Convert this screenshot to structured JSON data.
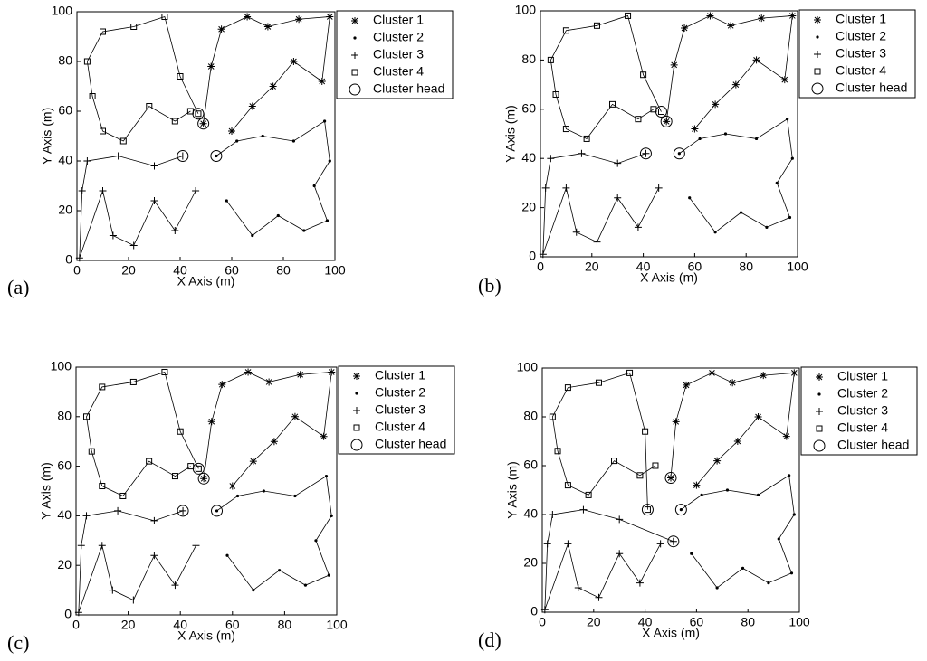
{
  "chart_data": [
    {
      "type": "line",
      "panel_label": "(a)",
      "xlabel": "X Axis (m)",
      "ylabel": "Y Axis (m)",
      "xlim": [
        0,
        100
      ],
      "ylim": [
        0,
        100
      ],
      "xticks": [
        0,
        20,
        40,
        60,
        80,
        100
      ],
      "yticks": [
        0,
        20,
        40,
        60,
        80,
        100
      ],
      "legend": "outside-right",
      "series": [
        {
          "name": "Cluster 1",
          "marker": "asterisk",
          "color": "#000000",
          "line": true,
          "x": [
            49,
            52,
            56,
            66,
            74,
            86,
            98,
            95,
            84,
            76,
            68,
            60
          ],
          "y": [
            55,
            78,
            93,
            98,
            94,
            97,
            98,
            72,
            80,
            70,
            62,
            52
          ]
        },
        {
          "name": "Cluster 2",
          "marker": "dot",
          "color": "#000000",
          "line": true,
          "x": [
            54,
            62,
            72,
            84,
            96,
            98,
            92,
            97,
            88,
            78,
            68,
            58
          ],
          "y": [
            42,
            48,
            50,
            48,
            56,
            40,
            30,
            16,
            12,
            18,
            10,
            24
          ]
        },
        {
          "name": "Cluster 3",
          "marker": "plus",
          "color": "#000000",
          "line": true,
          "x": [
            41,
            30,
            16,
            4,
            2,
            1,
            10,
            14,
            22,
            30,
            38,
            46
          ],
          "y": [
            42,
            38,
            42,
            40,
            28,
            1,
            28,
            10,
            6,
            24,
            12,
            28
          ]
        },
        {
          "name": "Cluster 4",
          "marker": "square",
          "color": "#000000",
          "line": true,
          "x": [
            47,
            40,
            34,
            22,
            10,
            4,
            6,
            10,
            18,
            28,
            38,
            44
          ],
          "y": [
            59,
            74,
            98,
            94,
            92,
            80,
            66,
            52,
            48,
            62,
            56,
            60
          ]
        },
        {
          "name": "Cluster head",
          "marker": "circle",
          "color": "#000000",
          "line": false,
          "x": [
            47,
            49,
            41,
            54
          ],
          "y": [
            59,
            55,
            42,
            42
          ]
        }
      ]
    },
    {
      "type": "line",
      "panel_label": "(b)",
      "xlabel": "X Axis (m)",
      "ylabel": "Y Axis (m)",
      "xlim": [
        0,
        100
      ],
      "ylim": [
        0,
        100
      ],
      "xticks": [
        0,
        20,
        40,
        60,
        80,
        100
      ],
      "yticks": [
        0,
        20,
        40,
        60,
        80,
        100
      ],
      "legend": "outside-right",
      "series": [
        {
          "name": "Cluster 1",
          "marker": "asterisk",
          "color": "#000000",
          "line": true,
          "x": [
            49,
            52,
            56,
            66,
            74,
            86,
            98,
            95,
            84,
            76,
            68,
            60
          ],
          "y": [
            55,
            78,
            93,
            98,
            94,
            97,
            98,
            72,
            80,
            70,
            62,
            52
          ]
        },
        {
          "name": "Cluster 2",
          "marker": "dot",
          "color": "#000000",
          "line": true,
          "x": [
            54,
            62,
            72,
            84,
            96,
            98,
            92,
            97,
            88,
            78,
            68,
            58
          ],
          "y": [
            42,
            48,
            50,
            48,
            56,
            40,
            30,
            16,
            12,
            18,
            10,
            24
          ]
        },
        {
          "name": "Cluster 3",
          "marker": "plus",
          "color": "#000000",
          "line": true,
          "x": [
            41,
            30,
            16,
            4,
            2,
            1,
            10,
            14,
            22,
            30,
            38,
            46
          ],
          "y": [
            42,
            38,
            42,
            40,
            28,
            1,
            28,
            10,
            6,
            24,
            12,
            28
          ]
        },
        {
          "name": "Cluster 4",
          "marker": "square",
          "color": "#000000",
          "line": true,
          "x": [
            47,
            40,
            34,
            22,
            10,
            4,
            6,
            10,
            18,
            28,
            38,
            44
          ],
          "y": [
            59,
            74,
            98,
            94,
            92,
            80,
            66,
            52,
            48,
            62,
            56,
            60
          ]
        },
        {
          "name": "Cluster head",
          "marker": "circle",
          "color": "#000000",
          "line": false,
          "x": [
            47,
            49,
            41,
            54
          ],
          "y": [
            59,
            55,
            42,
            42
          ]
        }
      ]
    },
    {
      "type": "line",
      "panel_label": "(c)",
      "xlabel": "X Axis (m)",
      "ylabel": "Y Axis (m)",
      "xlim": [
        0,
        100
      ],
      "ylim": [
        0,
        100
      ],
      "xticks": [
        0,
        20,
        40,
        60,
        80,
        100
      ],
      "yticks": [
        0,
        20,
        40,
        60,
        80,
        100
      ],
      "legend": "outside-right",
      "series": [
        {
          "name": "Cluster 1",
          "marker": "asterisk",
          "color": "#000000",
          "line": true,
          "x": [
            49,
            52,
            56,
            66,
            74,
            86,
            98,
            95,
            84,
            76,
            68,
            60
          ],
          "y": [
            55,
            78,
            93,
            98,
            94,
            97,
            98,
            72,
            80,
            70,
            62,
            52
          ]
        },
        {
          "name": "Cluster 2",
          "marker": "dot",
          "color": "#000000",
          "line": true,
          "x": [
            54,
            62,
            72,
            84,
            96,
            98,
            92,
            97,
            88,
            78,
            68,
            58
          ],
          "y": [
            42,
            48,
            50,
            48,
            56,
            40,
            30,
            16,
            12,
            18,
            10,
            24
          ]
        },
        {
          "name": "Cluster 3",
          "marker": "plus",
          "color": "#000000",
          "line": true,
          "x": [
            41,
            30,
            16,
            4,
            2,
            1,
            10,
            14,
            22,
            30,
            38,
            46
          ],
          "y": [
            42,
            38,
            42,
            40,
            28,
            1,
            28,
            10,
            6,
            24,
            12,
            28
          ]
        },
        {
          "name": "Cluster 4",
          "marker": "square",
          "color": "#000000",
          "line": true,
          "x": [
            47,
            40,
            34,
            22,
            10,
            4,
            6,
            10,
            18,
            28,
            38,
            44
          ],
          "y": [
            59,
            74,
            98,
            94,
            92,
            80,
            66,
            52,
            48,
            62,
            56,
            60
          ]
        },
        {
          "name": "Cluster head",
          "marker": "circle",
          "color": "#000000",
          "line": false,
          "x": [
            47,
            49,
            41,
            54
          ],
          "y": [
            59,
            55,
            42,
            42
          ]
        }
      ]
    },
    {
      "type": "line",
      "panel_label": "(d)",
      "xlabel": "X Axis (m)",
      "ylabel": "Y Axis (m)",
      "xlim": [
        0,
        100
      ],
      "ylim": [
        0,
        100
      ],
      "xticks": [
        0,
        20,
        40,
        60,
        80,
        100
      ],
      "yticks": [
        0,
        20,
        40,
        60,
        80,
        100
      ],
      "legend": "outside-right",
      "series": [
        {
          "name": "Cluster 1",
          "marker": "asterisk",
          "color": "#000000",
          "line": true,
          "x": [
            50,
            52,
            56,
            66,
            74,
            86,
            98,
            95,
            84,
            76,
            68,
            60
          ],
          "y": [
            55,
            78,
            93,
            98,
            94,
            97,
            98,
            72,
            80,
            70,
            62,
            52
          ]
        },
        {
          "name": "Cluster 2",
          "marker": "dot",
          "color": "#000000",
          "line": true,
          "x": [
            54,
            62,
            72,
            84,
            96,
            98,
            92,
            97,
            88,
            78,
            68,
            58
          ],
          "y": [
            42,
            48,
            50,
            48,
            56,
            40,
            30,
            16,
            12,
            18,
            10,
            24
          ]
        },
        {
          "name": "Cluster 3",
          "marker": "plus",
          "color": "#000000",
          "line": true,
          "x": [
            51,
            30,
            16,
            4,
            2,
            1,
            10,
            14,
            22,
            30,
            38,
            46
          ],
          "y": [
            29,
            38,
            42,
            40,
            28,
            1,
            28,
            10,
            6,
            24,
            12,
            28
          ]
        },
        {
          "name": "Cluster 4",
          "marker": "square",
          "color": "#000000",
          "line": true,
          "x": [
            41,
            40,
            34,
            22,
            10,
            4,
            6,
            10,
            18,
            28,
            38,
            44
          ],
          "y": [
            42,
            74,
            98,
            94,
            92,
            80,
            66,
            52,
            48,
            62,
            56,
            60
          ]
        },
        {
          "name": "Cluster head",
          "marker": "circle",
          "color": "#000000",
          "line": false,
          "x": [
            50,
            41,
            54,
            51
          ],
          "y": [
            55,
            42,
            42,
            29
          ]
        }
      ]
    }
  ]
}
